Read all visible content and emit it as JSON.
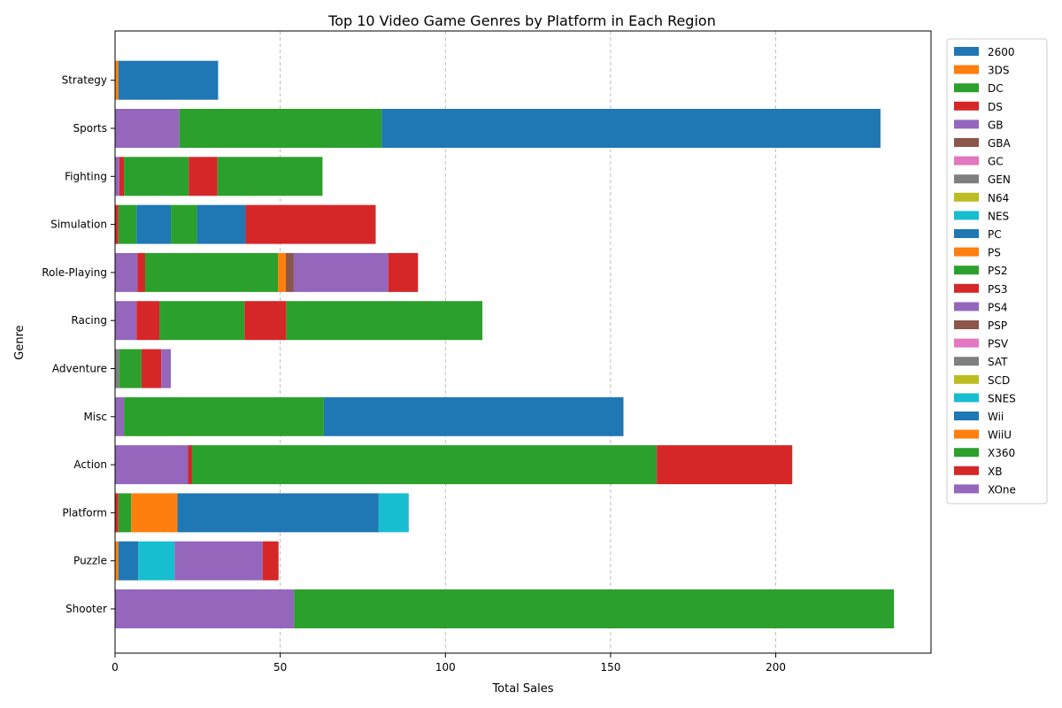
{
  "chart_data": {
    "type": "bar",
    "orientation": "horizontal",
    "stacked": true,
    "title": "Top 10 Video Game Genres by Platform in Each Region",
    "xlabel": "Total Sales",
    "ylabel": "Genre",
    "xlim": [
      0,
      247
    ],
    "xticks": [
      0,
      50,
      100,
      150,
      200
    ],
    "grid": "x-dashed",
    "legend_position": "outside-top-right",
    "categories": [
      "Shooter",
      "Puzzle",
      "Platform",
      "Action",
      "Misc",
      "Adventure",
      "Racing",
      "Role-Playing",
      "Simulation",
      "Fighting",
      "Sports",
      "Strategy"
    ],
    "legend": [
      {
        "name": "2600",
        "color": "#1f77b4"
      },
      {
        "name": "3DS",
        "color": "#ff7f0e"
      },
      {
        "name": "DC",
        "color": "#2ca02c"
      },
      {
        "name": "DS",
        "color": "#d62728"
      },
      {
        "name": "GB",
        "color": "#9467bd"
      },
      {
        "name": "GBA",
        "color": "#8c564b"
      },
      {
        "name": "GC",
        "color": "#e377c2"
      },
      {
        "name": "GEN",
        "color": "#7f7f7f"
      },
      {
        "name": "N64",
        "color": "#bcbd22"
      },
      {
        "name": "NES",
        "color": "#17becf"
      },
      {
        "name": "PC",
        "color": "#1f77b4"
      },
      {
        "name": "PS",
        "color": "#ff7f0e"
      },
      {
        "name": "PS2",
        "color": "#2ca02c"
      },
      {
        "name": "PS3",
        "color": "#d62728"
      },
      {
        "name": "PS4",
        "color": "#9467bd"
      },
      {
        "name": "PSP",
        "color": "#8c564b"
      },
      {
        "name": "PSV",
        "color": "#e377c2"
      },
      {
        "name": "SAT",
        "color": "#7f7f7f"
      },
      {
        "name": "SCD",
        "color": "#bcbd22"
      },
      {
        "name": "SNES",
        "color": "#17becf"
      },
      {
        "name": "Wii",
        "color": "#1f77b4"
      },
      {
        "name": "WiiU",
        "color": "#ff7f0e"
      },
      {
        "name": "X360",
        "color": "#2ca02c"
      },
      {
        "name": "XB",
        "color": "#d62728"
      },
      {
        "name": "XOne",
        "color": "#9467bd"
      }
    ],
    "segments": [
      {
        "genre": "Shooter",
        "segments": [
          {
            "color": "#9467bd",
            "start": 0,
            "end": 54.2
          },
          {
            "color": "#2ca02c",
            "start": 54.2,
            "end": 235.8
          }
        ]
      },
      {
        "genre": "Puzzle",
        "segments": [
          {
            "color": "#ff7f0e",
            "start": 0,
            "end": 1.0
          },
          {
            "color": "#1f77b4",
            "start": 1.0,
            "end": 7.0
          },
          {
            "color": "#17becf",
            "start": 7.0,
            "end": 18.0
          },
          {
            "color": "#9467bd",
            "start": 18.0,
            "end": 44.7
          },
          {
            "color": "#d62728",
            "start": 44.7,
            "end": 49.5
          }
        ]
      },
      {
        "genre": "Platform",
        "segments": [
          {
            "color": "#d62728",
            "start": 0,
            "end": 1.0
          },
          {
            "color": "#2ca02c",
            "start": 1.0,
            "end": 4.9
          },
          {
            "color": "#ff7f0e",
            "start": 4.9,
            "end": 18.9
          },
          {
            "color": "#1f77b4",
            "start": 18.9,
            "end": 79.8
          },
          {
            "color": "#17becf",
            "start": 79.8,
            "end": 88.9
          }
        ]
      },
      {
        "genre": "Action",
        "segments": [
          {
            "color": "#9467bd",
            "start": 0,
            "end": 22.1
          },
          {
            "color": "#d62728",
            "start": 22.1,
            "end": 23.3
          },
          {
            "color": "#2ca02c",
            "start": 23.3,
            "end": 164.0
          },
          {
            "color": "#d62728",
            "start": 164.0,
            "end": 205.0
          }
        ]
      },
      {
        "genre": "Misc",
        "segments": [
          {
            "color": "#9467bd",
            "start": 0,
            "end": 2.7
          },
          {
            "color": "#2ca02c",
            "start": 2.7,
            "end": 63.2
          },
          {
            "color": "#1f77b4",
            "start": 63.2,
            "end": 153.9
          }
        ]
      },
      {
        "genre": "Adventure",
        "segments": [
          {
            "color": "#7f7f7f",
            "start": 0,
            "end": 1.3
          },
          {
            "color": "#2ca02c",
            "start": 1.3,
            "end": 8.0
          },
          {
            "color": "#d62728",
            "start": 8.0,
            "end": 14.0
          },
          {
            "color": "#9467bd",
            "start": 14.0,
            "end": 16.9
          }
        ]
      },
      {
        "genre": "Racing",
        "segments": [
          {
            "color": "#9467bd",
            "start": 0,
            "end": 6.5
          },
          {
            "color": "#d62728",
            "start": 6.5,
            "end": 13.5
          },
          {
            "color": "#2ca02c",
            "start": 13.5,
            "end": 39.2
          },
          {
            "color": "#d62728",
            "start": 39.2,
            "end": 51.8
          },
          {
            "color": "#2ca02c",
            "start": 51.8,
            "end": 111.2
          }
        ]
      },
      {
        "genre": "Role-Playing",
        "segments": [
          {
            "color": "#9467bd",
            "start": 0,
            "end": 6.8
          },
          {
            "color": "#d62728",
            "start": 6.8,
            "end": 9.1
          },
          {
            "color": "#2ca02c",
            "start": 9.1,
            "end": 49.3
          },
          {
            "color": "#ff7f0e",
            "start": 49.3,
            "end": 51.7
          },
          {
            "color": "#8c564b",
            "start": 51.7,
            "end": 54.1
          },
          {
            "color": "#9467bd",
            "start": 54.1,
            "end": 82.7
          },
          {
            "color": "#d62728",
            "start": 82.7,
            "end": 91.7
          }
        ]
      },
      {
        "genre": "Simulation",
        "segments": [
          {
            "color": "#d62728",
            "start": 0,
            "end": 1.0
          },
          {
            "color": "#2ca02c",
            "start": 1.0,
            "end": 6.5
          },
          {
            "color": "#1f77b4",
            "start": 6.5,
            "end": 16.9
          },
          {
            "color": "#2ca02c",
            "start": 16.9,
            "end": 24.8
          },
          {
            "color": "#1f77b4",
            "start": 24.8,
            "end": 39.5
          },
          {
            "color": "#d62728",
            "start": 39.5,
            "end": 78.9
          }
        ]
      },
      {
        "genre": "Fighting",
        "segments": [
          {
            "color": "#9467bd",
            "start": 0,
            "end": 1.3
          },
          {
            "color": "#d62728",
            "start": 1.3,
            "end": 2.7
          },
          {
            "color": "#2ca02c",
            "start": 2.7,
            "end": 22.3
          },
          {
            "color": "#d62728",
            "start": 22.3,
            "end": 31.0
          },
          {
            "color": "#2ca02c",
            "start": 31.0,
            "end": 62.8
          }
        ]
      },
      {
        "genre": "Sports",
        "segments": [
          {
            "color": "#9467bd",
            "start": 0,
            "end": 19.5
          },
          {
            "color": "#2ca02c",
            "start": 19.5,
            "end": 80.7
          },
          {
            "color": "#1f77b4",
            "start": 80.7,
            "end": 231.7
          }
        ]
      },
      {
        "genre": "Strategy",
        "segments": [
          {
            "color": "#ff7f0e",
            "start": 0,
            "end": 1.0
          },
          {
            "color": "#1f77b4",
            "start": 1.0,
            "end": 31.2
          }
        ]
      }
    ]
  }
}
